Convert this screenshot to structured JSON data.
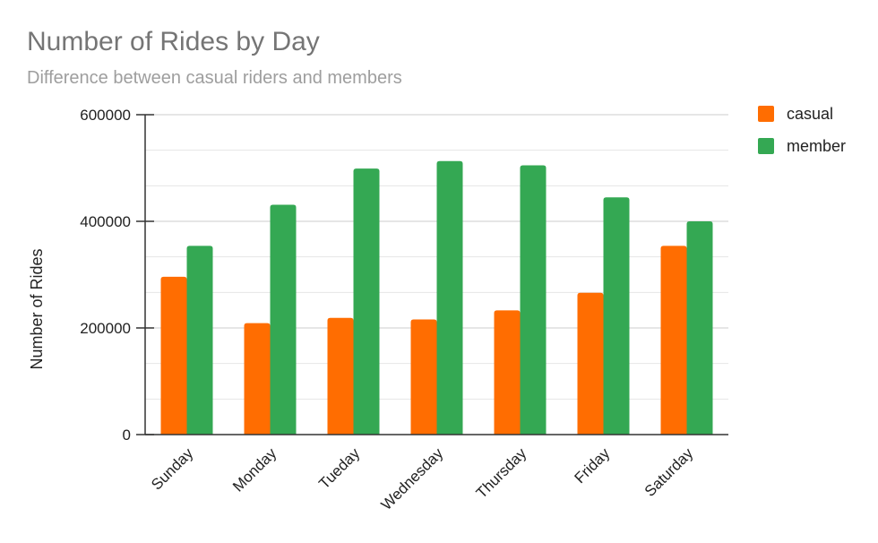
{
  "chart_data": {
    "type": "bar",
    "title": "Number of Rides by Day",
    "subtitle": "Difference between casual riders and members",
    "xlabel": "",
    "ylabel": "Number of Rides",
    "categories": [
      "Sunday",
      "Monday",
      "Tueday",
      "Wednesday",
      "Thursday",
      "Friday",
      "Saturday"
    ],
    "series": [
      {
        "name": "casual",
        "color": "#ff6d01",
        "values": [
          296000,
          209000,
          219000,
          216000,
          233000,
          266000,
          354000
        ]
      },
      {
        "name": "member",
        "color": "#34a853",
        "values": [
          354000,
          431000,
          499000,
          513000,
          505000,
          445000,
          400000
        ]
      }
    ],
    "ylim": [
      0,
      600000
    ],
    "yticks": [
      0,
      200000,
      400000,
      600000
    ],
    "minor_gridlines": true,
    "legend": "right"
  }
}
